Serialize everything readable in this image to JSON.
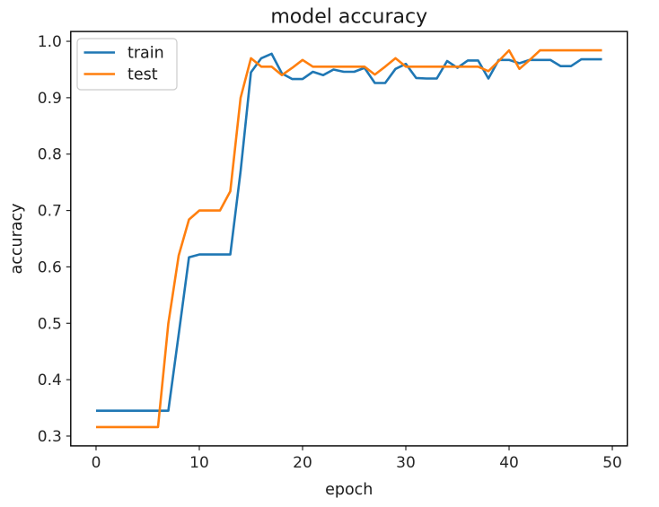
{
  "chart_data": {
    "type": "line",
    "title": "model accuracy",
    "xlabel": "epoch",
    "ylabel": "accuracy",
    "grid": false,
    "legend_position": "upper left",
    "xlim": [
      -2.45,
      51.45
    ],
    "ylim": [
      0.2826,
      1.0174
    ],
    "xtick_values": [
      0,
      10,
      20,
      30,
      40,
      50
    ],
    "xtick_labels": [
      "0",
      "10",
      "20",
      "30",
      "40",
      "50"
    ],
    "ytick_values": [
      0.3,
      0.4,
      0.5,
      0.6,
      0.7,
      0.8,
      0.9,
      1.0
    ],
    "ytick_labels": [
      "0.3",
      "0.4",
      "0.5",
      "0.6",
      "0.7",
      "0.8",
      "0.9",
      "1.0"
    ],
    "x": [
      0,
      1,
      2,
      3,
      4,
      5,
      6,
      7,
      8,
      9,
      10,
      11,
      12,
      13,
      14,
      15,
      16,
      17,
      18,
      19,
      20,
      21,
      22,
      23,
      24,
      25,
      26,
      27,
      28,
      29,
      30,
      31,
      32,
      33,
      34,
      35,
      36,
      37,
      38,
      39,
      40,
      41,
      42,
      43,
      44,
      45,
      46,
      47,
      48,
      49
    ],
    "series": [
      {
        "name": "train",
        "color": "#1f77b4",
        "values": [
          0.345,
          0.345,
          0.345,
          0.345,
          0.345,
          0.345,
          0.345,
          0.345,
          0.48,
          0.617,
          0.622,
          0.622,
          0.622,
          0.622,
          0.77,
          0.945,
          0.97,
          0.978,
          0.943,
          0.933,
          0.933,
          0.946,
          0.94,
          0.95,
          0.946,
          0.946,
          0.953,
          0.926,
          0.926,
          0.951,
          0.96,
          0.935,
          0.934,
          0.934,
          0.965,
          0.953,
          0.966,
          0.966,
          0.934,
          0.967,
          0.967,
          0.961,
          0.967,
          0.967,
          0.967,
          0.956,
          0.956,
          0.968,
          0.968,
          0.968
        ]
      },
      {
        "name": "test",
        "color": "#ff7f0e",
        "values": [
          0.316,
          0.316,
          0.316,
          0.316,
          0.316,
          0.316,
          0.316,
          0.5,
          0.62,
          0.684,
          0.7,
          0.7,
          0.7,
          0.734,
          0.9,
          0.97,
          0.955,
          0.955,
          0.94,
          0.953,
          0.967,
          0.955,
          0.955,
          0.955,
          0.955,
          0.955,
          0.955,
          0.941,
          0.955,
          0.97,
          0.955,
          0.955,
          0.955,
          0.955,
          0.955,
          0.955,
          0.955,
          0.955,
          0.947,
          0.965,
          0.984,
          0.951,
          0.967,
          0.984,
          0.984,
          0.984,
          0.984,
          0.984,
          0.984,
          0.984
        ]
      }
    ]
  }
}
